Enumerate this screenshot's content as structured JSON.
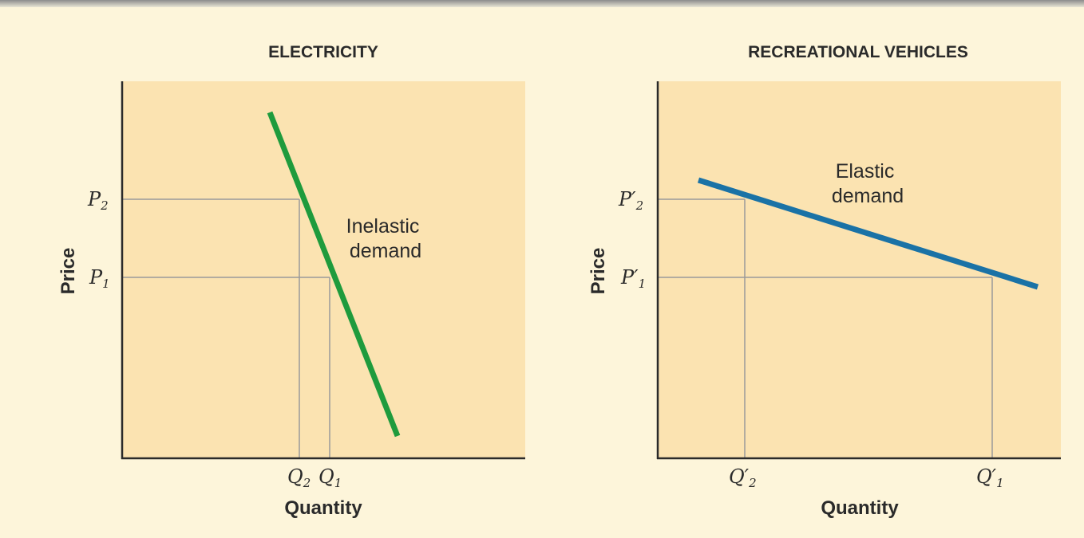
{
  "panels": [
    {
      "title": "ELECTRICITY",
      "y_label": "Price",
      "x_label": "Quantity",
      "y_ticks": [
        {
          "main": "P",
          "sub": "2"
        },
        {
          "main": "P",
          "sub": "1"
        }
      ],
      "x_ticks": [
        {
          "main": "Q",
          "sub": "2"
        },
        {
          "main": "Q",
          "sub": "1"
        }
      ],
      "curve_label": [
        "Inelastic",
        "demand"
      ]
    },
    {
      "title": "RECREATIONAL VEHICLES",
      "y_label": "Price",
      "x_label": "Quantity",
      "y_ticks": [
        {
          "main": "P′",
          "sub": "2"
        },
        {
          "main": "P′",
          "sub": "1"
        }
      ],
      "x_ticks": [
        {
          "main": "Q′",
          "sub": "2"
        },
        {
          "main": "Q′",
          "sub": "1"
        }
      ],
      "curve_label": [
        "Elastic",
        "demand"
      ]
    }
  ]
}
